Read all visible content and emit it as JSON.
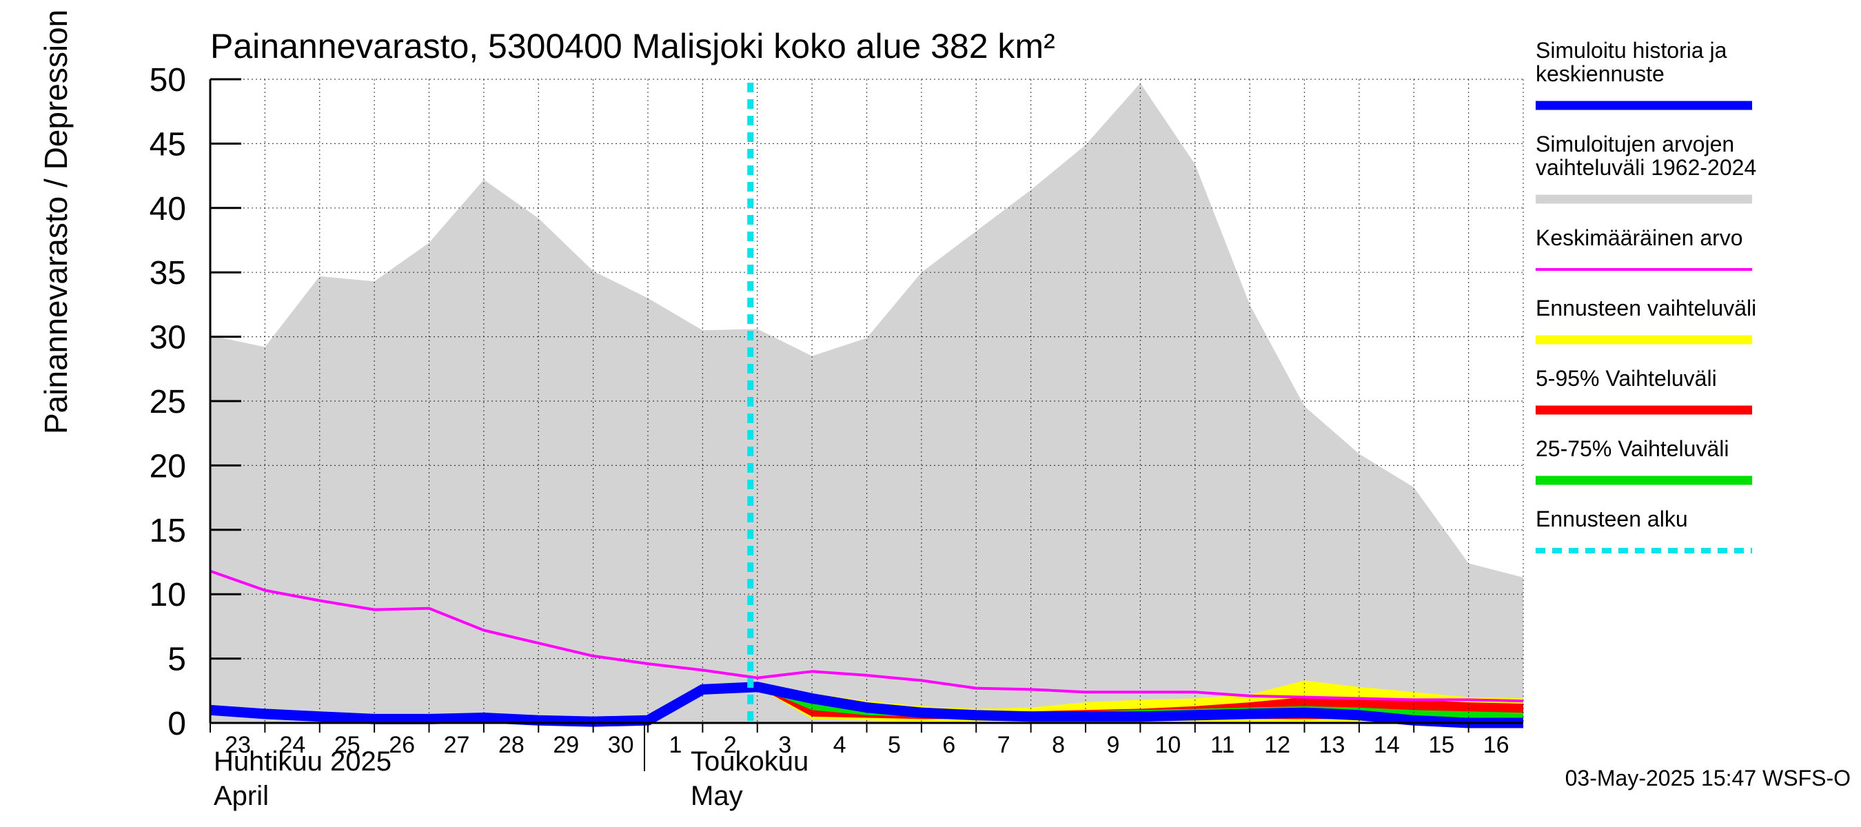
{
  "chart_data": {
    "type": "area",
    "title": "Painannevarasto, 5300400 Malisjoki koko alue 382 km²",
    "ylabel": "Painannevarasto / Depression storage    mm",
    "ylim": [
      0,
      50
    ],
    "yticks": [
      "0",
      "5",
      "10",
      "15",
      "20",
      "25",
      "30",
      "35",
      "40",
      "45",
      "50"
    ],
    "x_range_days": [
      0,
      24
    ],
    "day_ticks": [
      {
        "day": 0,
        "label": "23"
      },
      {
        "day": 1,
        "label": "24"
      },
      {
        "day": 2,
        "label": "25"
      },
      {
        "day": 3,
        "label": "26"
      },
      {
        "day": 4,
        "label": "27"
      },
      {
        "day": 5,
        "label": "28"
      },
      {
        "day": 6,
        "label": "29"
      },
      {
        "day": 7,
        "label": "30"
      },
      {
        "day": 8,
        "label": "1"
      },
      {
        "day": 9,
        "label": "2"
      },
      {
        "day": 10,
        "label": "3"
      },
      {
        "day": 11,
        "label": "4"
      },
      {
        "day": 12,
        "label": "5"
      },
      {
        "day": 13,
        "label": "6"
      },
      {
        "day": 14,
        "label": "7"
      },
      {
        "day": 15,
        "label": "8"
      },
      {
        "day": 16,
        "label": "9"
      },
      {
        "day": 17,
        "label": "10"
      },
      {
        "day": 18,
        "label": "11"
      },
      {
        "day": 19,
        "label": "12"
      },
      {
        "day": 20,
        "label": "13"
      },
      {
        "day": 21,
        "label": "14"
      },
      {
        "day": 22,
        "label": "15"
      },
      {
        "day": 23,
        "label": "16"
      }
    ],
    "month_separator_day": 8,
    "month_labels": {
      "april_fi": "Huhtikuu  2025",
      "april_en": "April",
      "may_fi": "Toukokuu",
      "may_en": "May"
    },
    "forecast_start_day": 10,
    "series": [
      {
        "name": "Simuloitujen arvojen vaihteluväli 1962-2024",
        "kind": "band",
        "color": "#d3d3d3",
        "x": [
          0,
          1,
          2,
          3,
          4,
          5,
          6,
          7,
          8,
          9,
          10,
          11,
          12,
          13,
          14,
          15,
          16,
          17,
          18,
          19,
          20,
          21,
          22,
          23,
          24
        ],
        "upper": [
          30.1,
          29.2,
          34.7,
          34.3,
          37.3,
          42.2,
          39.2,
          35.1,
          33.0,
          30.5,
          30.6,
          28.5,
          29.9,
          35.0,
          38.2,
          41.4,
          44.9,
          49.7,
          43.4,
          32.5,
          24.6,
          20.9,
          18.3,
          12.4,
          11.3
        ],
        "lower": [
          0,
          0,
          0,
          0,
          0,
          0,
          0,
          0,
          0,
          0,
          0,
          0,
          0,
          0,
          0,
          0,
          0,
          0,
          0,
          0,
          0,
          0,
          0,
          0,
          0
        ]
      },
      {
        "name": "Ennusteen vaihteluväli",
        "kind": "band",
        "color": "#ffff00",
        "x": [
          10,
          11,
          12,
          13,
          14,
          15,
          16,
          17,
          18,
          19,
          20,
          21,
          22,
          23,
          24
        ],
        "upper": [
          3.0,
          2.3,
          1.7,
          1.3,
          1.1,
          1.2,
          1.6,
          1.8,
          1.9,
          2.2,
          3.3,
          2.8,
          2.4,
          2.0,
          1.9
        ],
        "lower": [
          2.8,
          0.3,
          0.2,
          0.1,
          0.1,
          0.1,
          0.1,
          0.1,
          0.1,
          0.1,
          0.1,
          0.1,
          0.1,
          0.1,
          0.1
        ]
      },
      {
        "name": "5-95% Vaihteluväli",
        "kind": "band",
        "color": "#ff0000",
        "x": [
          10,
          11,
          12,
          13,
          14,
          15,
          16,
          17,
          18,
          19,
          20,
          21,
          22,
          23,
          24
        ],
        "upper": [
          2.9,
          2.0,
          1.5,
          1.1,
          0.9,
          0.9,
          1.0,
          1.1,
          1.3,
          1.6,
          2.0,
          2.0,
          1.8,
          1.6,
          1.5
        ],
        "lower": [
          2.8,
          0.5,
          0.4,
          0.3,
          0.3,
          0.3,
          0.3,
          0.3,
          0.3,
          0.3,
          0.3,
          0.3,
          0.2,
          0.1,
          0.1
        ]
      },
      {
        "name": "25-75% Vaihteluväli",
        "kind": "band",
        "color": "#00e000",
        "x": [
          10,
          11,
          12,
          13,
          14,
          15,
          16,
          17,
          18,
          19,
          20,
          21,
          22,
          23,
          24
        ],
        "upper": [
          2.8,
          1.9,
          1.4,
          1.0,
          0.8,
          0.8,
          0.9,
          1.0,
          1.1,
          1.2,
          1.3,
          1.2,
          1.0,
          0.9,
          0.8
        ],
        "lower": [
          2.8,
          1.0,
          0.6,
          0.5,
          0.4,
          0.4,
          0.4,
          0.4,
          0.4,
          0.4,
          0.4,
          0.4,
          0.3,
          0.2,
          0.2
        ]
      },
      {
        "name": "Keskimääräinen arvo",
        "kind": "line",
        "color": "#ff00ff",
        "x": [
          0,
          1,
          2,
          3,
          4,
          5,
          6,
          7,
          8,
          9,
          10,
          11,
          12,
          13,
          14,
          15,
          16,
          17,
          18,
          19,
          20,
          21,
          22,
          23,
          24
        ],
        "values": [
          11.8,
          10.3,
          9.5,
          8.8,
          8.9,
          7.2,
          6.2,
          5.2,
          4.6,
          4.1,
          3.5,
          4.0,
          3.7,
          3.3,
          2.7,
          2.6,
          2.4,
          2.4,
          2.4,
          2.1,
          2.0,
          1.9,
          1.8,
          1.8,
          1.7
        ]
      },
      {
        "name": "Simuloitu historia ja keskiennuste",
        "kind": "line",
        "color": "#0000ff",
        "x": [
          0,
          1,
          2,
          3,
          4,
          5,
          6,
          7,
          8,
          9,
          10,
          11,
          12,
          13,
          14,
          15,
          16,
          17,
          18,
          19,
          20,
          21,
          22,
          23,
          24
        ],
        "values": [
          1.0,
          0.7,
          0.5,
          0.3,
          0.3,
          0.4,
          0.2,
          0.1,
          0.2,
          2.6,
          2.8,
          1.9,
          1.2,
          0.8,
          0.6,
          0.5,
          0.5,
          0.5,
          0.6,
          0.7,
          0.8,
          0.6,
          0.2,
          0.0,
          0.0
        ]
      }
    ],
    "legend": {
      "placement": "right",
      "items": [
        {
          "lines": [
            "Simuloitu historia ja",
            "keskiennuste"
          ],
          "color": "#0000ff",
          "style": "solid"
        },
        {
          "lines": [
            "Simuloitujen arvojen",
            "vaihteluväli 1962-2024"
          ],
          "color": "#d3d3d3",
          "style": "solid"
        },
        {
          "lines": [
            "Keskimääräinen arvo"
          ],
          "color": "#ff00ff",
          "style": "thin"
        },
        {
          "lines": [
            "Ennusteen vaihteluväli"
          ],
          "color": "#ffff00",
          "style": "solid"
        },
        {
          "lines": [
            "5-95% Vaihteluväli"
          ],
          "color": "#ff0000",
          "style": "solid"
        },
        {
          "lines": [
            "25-75% Vaihteluväli"
          ],
          "color": "#00e000",
          "style": "solid"
        },
        {
          "lines": [
            "Ennusteen alku"
          ],
          "color": "#00e5ee",
          "style": "dashed"
        }
      ]
    },
    "timestamp": "03-May-2025 15:47 WSFS-O"
  }
}
